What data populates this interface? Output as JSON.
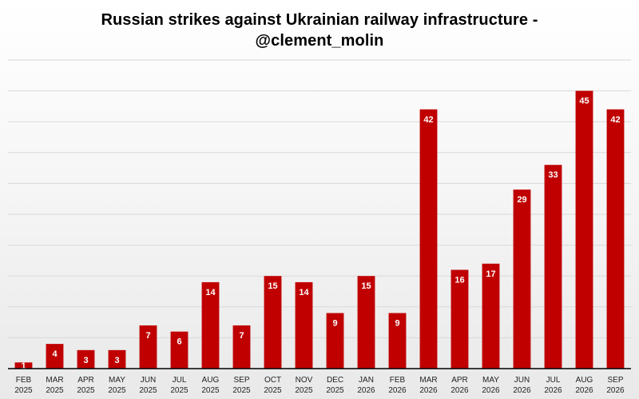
{
  "chart_data": {
    "type": "bar",
    "title_lines": [
      "Russian strikes against Ukrainian railway infrastructure -",
      "@clement_molin"
    ],
    "categories": [
      [
        "FEB",
        "2025"
      ],
      [
        "MAR",
        "2025"
      ],
      [
        "APR",
        "2025"
      ],
      [
        "MAY",
        "2025"
      ],
      [
        "JUN",
        "2025"
      ],
      [
        "JUL",
        "2025"
      ],
      [
        "AUG",
        "2025"
      ],
      [
        "SEP",
        "2025"
      ],
      [
        "OCT",
        "2025"
      ],
      [
        "NOV",
        "2025"
      ],
      [
        "DEC",
        "2025"
      ],
      [
        "JAN",
        "2026"
      ],
      [
        "FEB",
        "2026"
      ],
      [
        "MAR",
        "2026"
      ],
      [
        "APR",
        "2026"
      ],
      [
        "MAY",
        "2026"
      ],
      [
        "JUN",
        "2026"
      ],
      [
        "JUL",
        "2026"
      ],
      [
        "AUG",
        "2026"
      ],
      [
        "SEP",
        "2026"
      ]
    ],
    "values": [
      1,
      4,
      3,
      3,
      7,
      6,
      14,
      7,
      15,
      14,
      9,
      15,
      9,
      42,
      16,
      17,
      29,
      33,
      45,
      42
    ],
    "data_labels": [
      "1",
      "4",
      "3",
      "3",
      "7",
      "6",
      "14",
      "7",
      "15",
      "14",
      "9",
      "15",
      "9",
      "42",
      "16",
      "17",
      "29",
      "33",
      "45",
      "42"
    ],
    "ylim": [
      0,
      50
    ],
    "grid": true,
    "bar_color": "#c00000",
    "label_color": "#ffffff",
    "grid_color": "#d9d9d9",
    "axis_color": "#000000"
  }
}
